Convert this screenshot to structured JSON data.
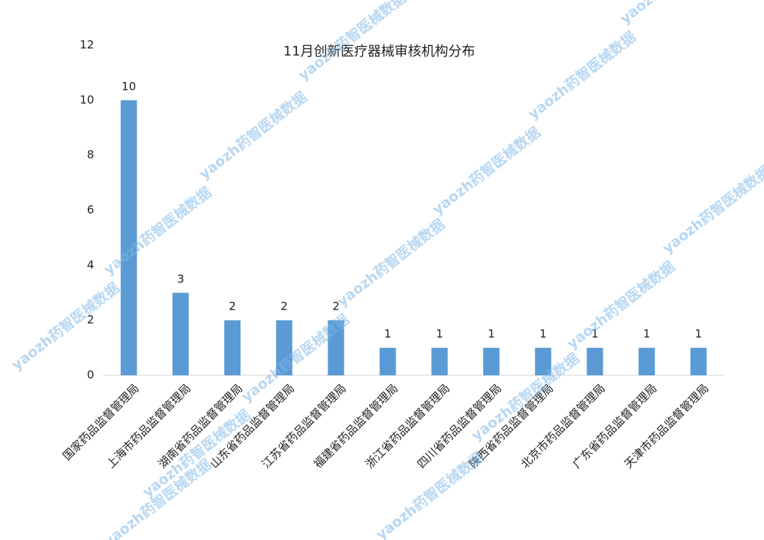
{
  "chart_data": {
    "type": "bar",
    "title": "11月创新医疗器械审核机构分布",
    "categories": [
      "国家药品监督管理局",
      "上海市药品监督管理局",
      "湖南省药品监督管理局",
      "山东省药品监督管理局",
      "江苏省药品监督管理局",
      "福建省药品监督管理局",
      "浙江省药品监督管理局",
      "四川省药品监督管理局",
      "陕西省药品监督管理局",
      "北京市药品监督管理局",
      "广东省药品监督管理局",
      "天津市药品监督管理局"
    ],
    "values": [
      10,
      3,
      2,
      2,
      2,
      1,
      1,
      1,
      1,
      1,
      1,
      1
    ],
    "color": "#5b9bd5",
    "ylim": [
      0,
      12
    ],
    "yticks": [
      0,
      2,
      4,
      6,
      8,
      10,
      12
    ],
    "grid": false,
    "watermark": "yaozh药智医械数据"
  }
}
